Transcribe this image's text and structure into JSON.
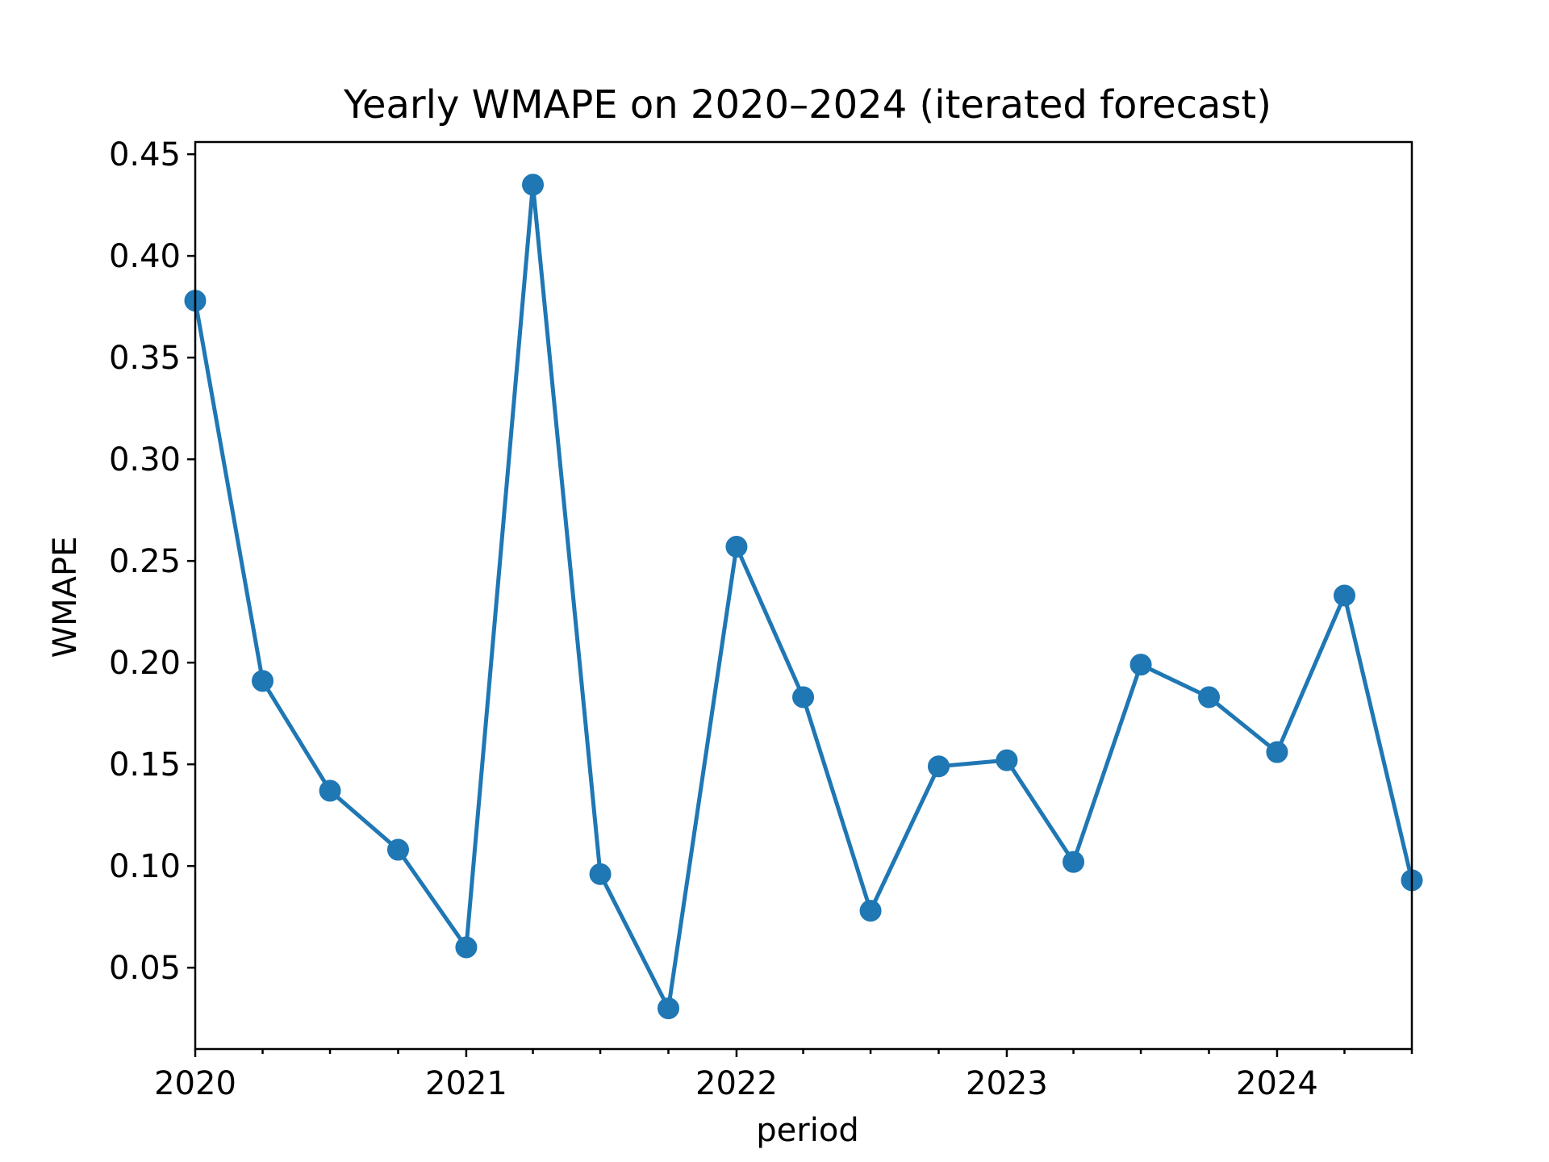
{
  "chart_data": {
    "type": "line",
    "title": "Yearly WMAPE on 2020–2024 (iterated forecast)",
    "xlabel": "period",
    "ylabel": "WMAPE",
    "x_major_tick_labels": [
      "2020",
      "2021",
      "2022",
      "2023",
      "2024"
    ],
    "y_tick_labels": [
      "0.05",
      "0.10",
      "0.15",
      "0.20",
      "0.25",
      "0.30",
      "0.35",
      "0.40",
      "0.45"
    ],
    "y_ticks": [
      0.05,
      0.1,
      0.15,
      0.2,
      0.25,
      0.3,
      0.35,
      0.4,
      0.45
    ],
    "xlim": [
      "2020-01-01",
      "2024-07-01"
    ],
    "ylim": [
      0.01,
      0.456
    ],
    "grid": false,
    "color": "#1f77b4",
    "x": [
      "2020-01-01",
      "2020-04-01",
      "2020-07-01",
      "2020-10-01",
      "2021-01-01",
      "2021-04-01",
      "2021-07-01",
      "2021-10-01",
      "2022-01-01",
      "2022-04-01",
      "2022-07-01",
      "2022-10-01",
      "2023-01-01",
      "2023-04-01",
      "2023-07-01",
      "2023-10-01",
      "2024-01-01",
      "2024-04-01",
      "2024-07-01"
    ],
    "values": [
      0.378,
      0.191,
      0.137,
      0.108,
      0.06,
      0.435,
      0.096,
      0.03,
      0.257,
      0.183,
      0.078,
      0.149,
      0.152,
      0.102,
      0.199,
      0.183,
      0.156,
      0.233,
      0.093
    ]
  }
}
